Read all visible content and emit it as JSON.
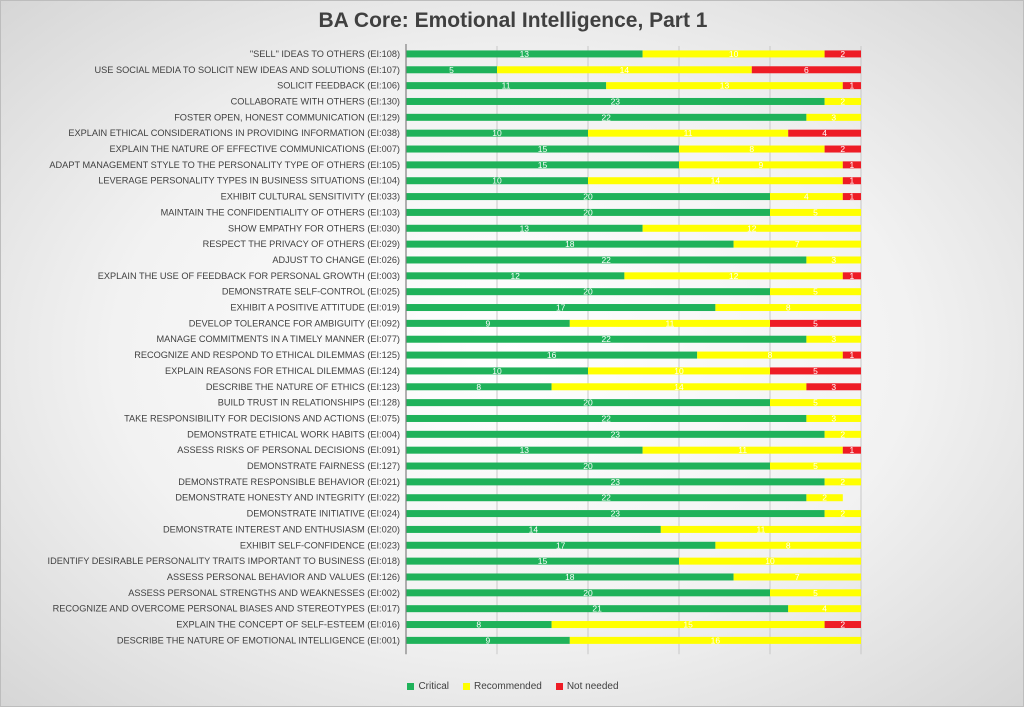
{
  "chart_data": {
    "type": "bar",
    "orientation": "horizontal",
    "stacked": true,
    "title": "BA Core: Emotional Intelligence, Part 1",
    "grid": true,
    "legend_position": "bottom",
    "xlim": [
      0,
      25
    ],
    "categories": [
      "\"SELL\" IDEAS TO OTHERS (EI:108)",
      "USE SOCIAL MEDIA TO SOLICIT NEW IDEAS AND SOLUTIONS (EI:107)",
      "SOLICIT FEEDBACK (EI:106)",
      "COLLABORATE WITH OTHERS (EI:130)",
      "FOSTER OPEN, HONEST COMMUNICATION (EI:129)",
      "EXPLAIN ETHICAL CONSIDERATIONS IN PROVIDING INFORMATION (EI:038)",
      "EXPLAIN THE NATURE OF EFFECTIVE COMMUNICATIONS (EI:007)",
      "ADAPT MANAGEMENT STYLE TO THE PERSONALITY TYPE OF OTHERS (EI:105)",
      "LEVERAGE PERSONALITY TYPES IN BUSINESS SITUATIONS (EI:104)",
      "EXHIBIT CULTURAL SENSITIVITY (EI:033)",
      "MAINTAIN THE CONFIDENTIALITY OF OTHERS (EI:103)",
      "SHOW EMPATHY FOR OTHERS (EI:030)",
      "RESPECT THE PRIVACY OF OTHERS (EI:029)",
      "ADJUST TO CHANGE (EI:026)",
      "EXPLAIN THE USE OF FEEDBACK FOR PERSONAL GROWTH (EI:003)",
      "DEMONSTRATE SELF-CONTROL (EI:025)",
      "EXHIBIT A POSITIVE ATTITUDE (EI:019)",
      "DEVELOP TOLERANCE FOR AMBIGUITY (EI:092)",
      "MANAGE COMMITMENTS IN A TIMELY MANNER (EI:077)",
      "RECOGNIZE AND RESPOND TO ETHICAL DILEMMAS (EI:125)",
      "EXPLAIN REASONS FOR ETHICAL DILEMMAS (EI:124)",
      "DESCRIBE THE NATURE OF ETHICS (EI:123)",
      "BUILD TRUST IN RELATIONSHIPS (EI:128)",
      "TAKE RESPONSIBILITY FOR DECISIONS AND ACTIONS (EI:075)",
      "DEMONSTRATE ETHICAL WORK HABITS (EI:004)",
      "ASSESS RISKS OF PERSONAL DECISIONS (EI:091)",
      "DEMONSTRATE FAIRNESS (EI:127)",
      "DEMONSTRATE RESPONSIBLE BEHAVIOR (EI:021)",
      "DEMONSTRATE HONESTY AND INTEGRITY (EI:022)",
      "DEMONSTRATE INITIATIVE (EI:024)",
      "DEMONSTRATE INTEREST AND ENTHUSIASM (EI:020)",
      "EXHIBIT SELF-CONFIDENCE (EI:023)",
      "IDENTIFY DESIRABLE PERSONALITY TRAITS IMPORTANT TO BUSINESS (EI:018)",
      "ASSESS PERSONAL BEHAVIOR AND VALUES (EI:126)",
      "ASSESS PERSONAL STRENGTHS AND WEAKNESSES (EI:002)",
      "RECOGNIZE AND OVERCOME PERSONAL BIASES AND STEREOTYPES (EI:017)",
      "EXPLAIN THE CONCEPT OF SELF-ESTEEM (EI:016)",
      "DESCRIBE THE NATURE OF EMOTIONAL INTELLIGENCE (EI:001)"
    ],
    "series": [
      {
        "name": "Critical",
        "color": "#1fb25a",
        "values": [
          13,
          5,
          11,
          23,
          22,
          10,
          15,
          15,
          10,
          20,
          20,
          13,
          18,
          22,
          12,
          20,
          17,
          9,
          22,
          16,
          10,
          8,
          20,
          22,
          23,
          13,
          20,
          23,
          22,
          23,
          14,
          17,
          15,
          18,
          20,
          21,
          8,
          9
        ]
      },
      {
        "name": "Recommended",
        "color": "#ffff00",
        "values": [
          10,
          14,
          13,
          2,
          3,
          11,
          8,
          9,
          14,
          4,
          5,
          12,
          7,
          3,
          12,
          5,
          8,
          11,
          3,
          8,
          10,
          14,
          5,
          3,
          2,
          11,
          5,
          2,
          2,
          2,
          11,
          8,
          10,
          7,
          5,
          4,
          15,
          16
        ]
      },
      {
        "name": "Not needed",
        "color": "#ee1c25",
        "values": [
          2,
          6,
          1,
          0,
          0,
          4,
          2,
          1,
          1,
          1,
          0,
          0,
          0,
          0,
          1,
          0,
          0,
          5,
          0,
          1,
          5,
          3,
          0,
          0,
          0,
          1,
          0,
          0,
          0,
          0,
          0,
          0,
          0,
          0,
          0,
          0,
          2,
          0
        ]
      }
    ]
  }
}
